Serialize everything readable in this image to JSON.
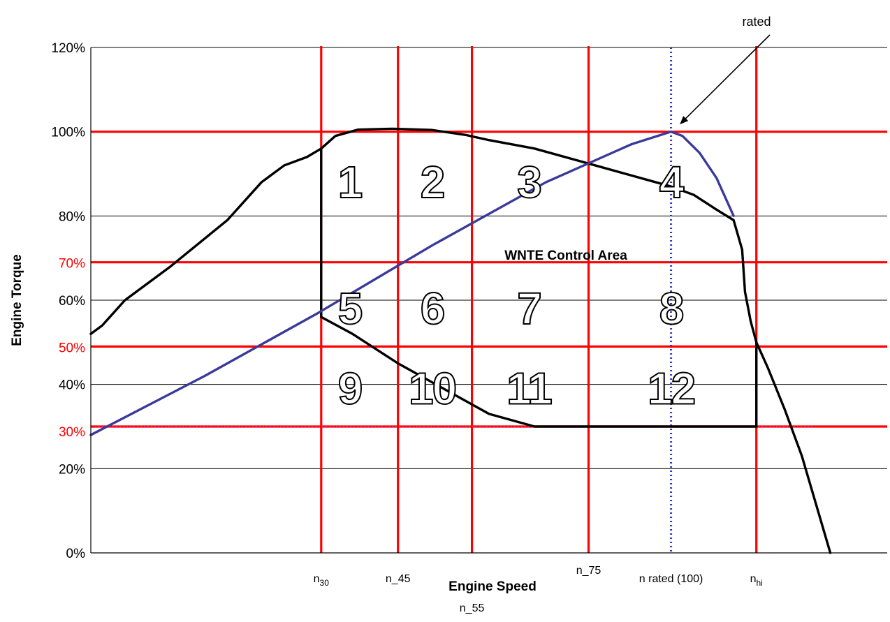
{
  "chart_data": {
    "type": "line",
    "title": "",
    "xlabel": "Engine Speed",
    "ylabel": "Engine Torque",
    "xlim": [
      0,
      140
    ],
    "ylim": [
      0,
      120
    ],
    "grid": true,
    "y_ticks": [
      "0%",
      "20%",
      "40%",
      "60%",
      "80%",
      "100%",
      "120%"
    ],
    "y_tick_values": [
      0,
      20,
      40,
      60,
      80,
      100,
      120
    ],
    "red_y_labels": [
      {
        "text": "70%",
        "value": 70
      },
      {
        "text": "50%",
        "value": 50
      },
      {
        "text": "30%",
        "value": 30
      }
    ],
    "speed_labels": [
      {
        "text": "n",
        "sub": "30",
        "x": 40.5
      },
      {
        "text": "n_45",
        "sub": "",
        "x": 54
      },
      {
        "text": "n_55",
        "sub": "",
        "x": 67
      },
      {
        "text": "n_75",
        "sub": "",
        "x": 87.5
      },
      {
        "text": "n rated (100)",
        "sub": "",
        "x": 102
      },
      {
        "text": "n",
        "sub": "hi",
        "x": 117
      }
    ],
    "red_vertical_lines": [
      40.5,
      54,
      67,
      87.5,
      117
    ],
    "red_horizontal_lines": [
      100,
      69,
      49,
      30
    ],
    "rated_line_x": 102,
    "region_label": "WNTE Control Area",
    "cells": [
      {
        "label": "1",
        "x": 45.5,
        "y": 88
      },
      {
        "label": "2",
        "x": 60,
        "y": 88
      },
      {
        "label": "3",
        "x": 77,
        "y": 88
      },
      {
        "label": "4",
        "x": 102,
        "y": 88
      },
      {
        "label": "5",
        "x": 45.5,
        "y": 58
      },
      {
        "label": "6",
        "x": 60,
        "y": 58
      },
      {
        "label": "7",
        "x": 77,
        "y": 58
      },
      {
        "label": "8",
        "x": 102,
        "y": 58
      },
      {
        "label": "9",
        "x": 45.5,
        "y": 39
      },
      {
        "label": "10",
        "x": 60,
        "y": 39
      },
      {
        "label": "11",
        "x": 77,
        "y": 39
      },
      {
        "label": "12",
        "x": 102,
        "y": 39
      }
    ],
    "annotation": {
      "text": "rated",
      "tip_x": 102,
      "tip_y": 100
    },
    "series": [
      {
        "color": "#000000",
        "x": [
          0,
          2,
          6,
          14,
          24,
          30,
          34,
          38,
          40.5,
          43,
          47,
          53,
          60,
          66,
          70,
          78,
          86,
          90,
          94,
          98,
          102,
          106,
          110,
          113,
          114.5,
          115,
          116,
          117,
          119,
          122,
          125,
          130
        ],
        "y": [
          52,
          54,
          60,
          68,
          79,
          88,
          92,
          94,
          96,
          99,
          100.5,
          100.7,
          100.4,
          99.2,
          98,
          96,
          93,
          91.5,
          90,
          88.5,
          87,
          85,
          81.5,
          79,
          72,
          62,
          55,
          50,
          44,
          34,
          23,
          0
        ]
      },
      {
        "color": "#000000",
        "x": [
          40.5,
          40.5,
          46,
          54,
          62,
          70,
          78,
          117
        ],
        "y": [
          96,
          56,
          52,
          45,
          39,
          33,
          30,
          30
        ]
      },
      {
        "color": "#000000",
        "x": [
          117,
          117
        ],
        "y": [
          50,
          30
        ]
      },
      {
        "color": "#3a3a9a",
        "x": [
          0,
          20,
          40,
          60,
          80,
          95,
          102,
          104,
          107,
          110,
          113
        ],
        "y": [
          28,
          42,
          57,
          73,
          88,
          97,
          100,
          99,
          95,
          89,
          80
        ]
      }
    ]
  }
}
